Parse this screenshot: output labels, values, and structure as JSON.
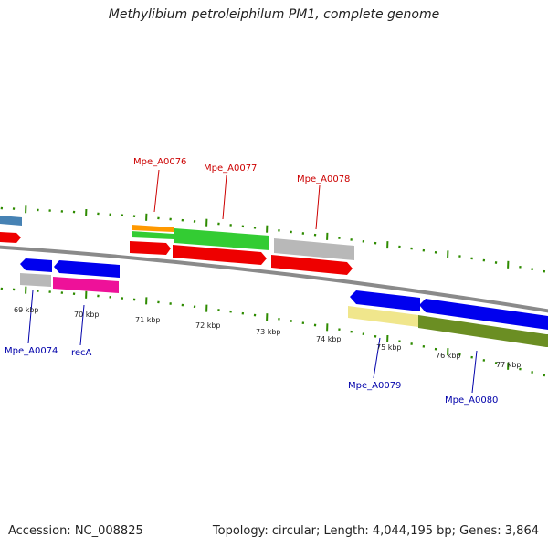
{
  "title": "Methylibium petroleiphilum PM1, complete genome",
  "footer": {
    "accession": "Accession: NC_008825",
    "summary": "Topology: circular; Length: 4,044,195 bp; Genes: 3,864"
  },
  "ruler": {
    "labels": [
      "69 kbp",
      "70 kbp",
      "71 kbp",
      "72 kbp",
      "73 kbp",
      "74 kbp",
      "75 kbp",
      "76 kbp",
      "77 kbp"
    ]
  },
  "genes": {
    "forward": [
      "Mpe_A0076",
      "Mpe_A0077",
      "Mpe_A0078"
    ],
    "reverse": [
      "Mpe_A0074",
      "recA",
      "Mpe_A0079",
      "Mpe_A0080"
    ]
  },
  "colors": {
    "forward_label": "#cc0000",
    "reverse_label": "#0000aa",
    "backbone": "#8a8a8a",
    "tick": "#2e8b00",
    "red": "#ee0000",
    "green": "#33cc33",
    "orange": "#ff9900",
    "gray": "#b8b8b8",
    "blue": "#0000ee",
    "magenta": "#ee1199",
    "steelblue": "#4682b4",
    "yellow": "#f0e68c",
    "olive": "#6b8e23"
  }
}
